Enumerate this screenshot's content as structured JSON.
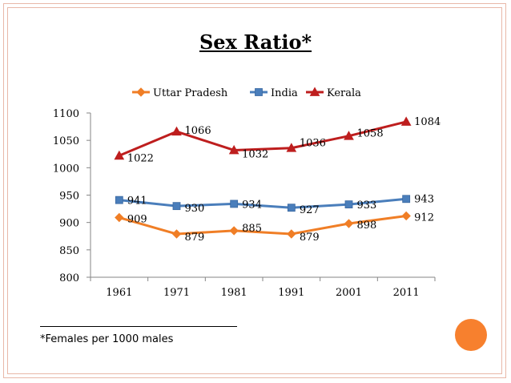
{
  "slide": {
    "title": "Sex Ratio*",
    "footnote": "*Females per 1000 males"
  },
  "colors": {
    "uttar_pradesh": "#F07E26",
    "india": "#4A7EBB",
    "kerala": "#BE1E1E",
    "accent_circle": "#F7802E",
    "frame": "#E8B8A8"
  },
  "chart_data": {
    "type": "line",
    "title": "Sex Ratio*",
    "categories": [
      "1961",
      "1971",
      "1981",
      "1991",
      "2001",
      "2011"
    ],
    "series": [
      {
        "name": "Uttar Pradesh",
        "values": [
          909,
          879,
          885,
          879,
          898,
          912
        ],
        "marker": "diamond"
      },
      {
        "name": "India",
        "values": [
          941,
          930,
          934,
          927,
          933,
          943
        ],
        "marker": "square"
      },
      {
        "name": "Kerala",
        "values": [
          1022,
          1066,
          1032,
          1036,
          1058,
          1084
        ],
        "marker": "triangle"
      }
    ],
    "ylim": [
      800,
      1100
    ],
    "yticks": [
      800,
      850,
      900,
      950,
      1000,
      1050,
      1100
    ],
    "xlabel": "",
    "ylabel": "",
    "legend_position": "top",
    "grid": false
  }
}
